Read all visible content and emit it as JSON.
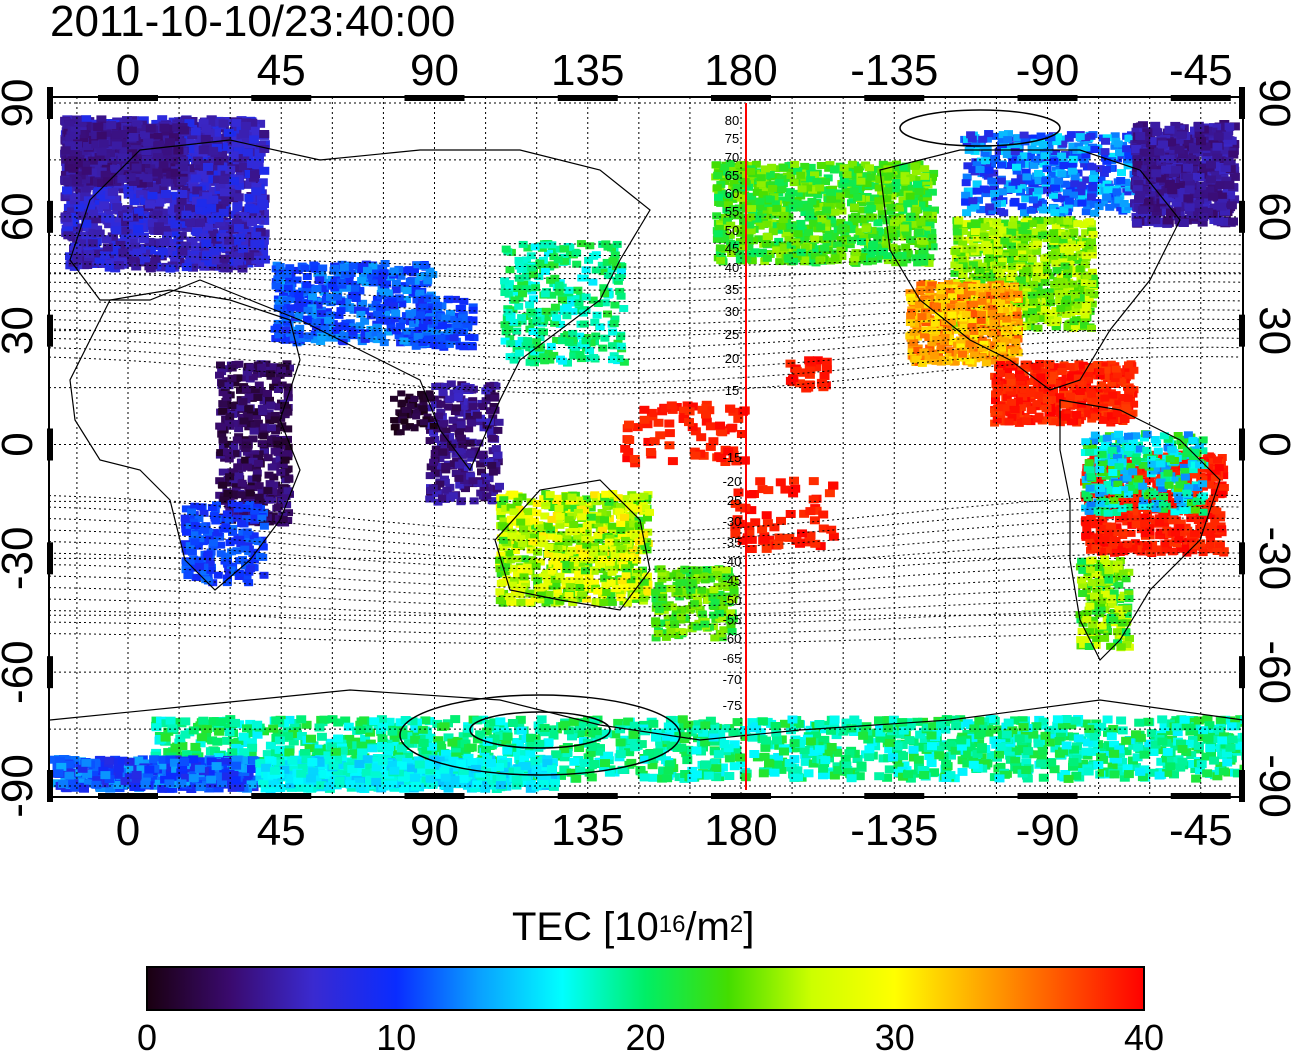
{
  "title": "2011-10-10/23:40:00",
  "map": {
    "lon_ticks": [
      "0",
      "45",
      "90",
      "135",
      "180",
      "-135",
      "-90",
      "-45"
    ],
    "lat_ticks": [
      "90",
      "60",
      "30",
      "0",
      "-30",
      "-60",
      "-90"
    ],
    "dip_contour_labels": [
      "80",
      "75",
      "70",
      "65",
      "60",
      "55",
      "50",
      "45",
      "40",
      "35",
      "30",
      "25",
      "20",
      "15",
      "-15",
      "-20",
      "-25",
      "-30",
      "-35",
      "-40",
      "-45",
      "-50",
      "-55",
      "-60",
      "-65",
      "-70",
      "-75"
    ],
    "marker_line_color": "#ff0000"
  },
  "colorbar": {
    "title_prefix": "TEC  [10",
    "title_exp1": "16",
    "title_mid": "/m",
    "title_exp2": "2",
    "title_suffix": "]",
    "tick_labels": [
      "0",
      "10",
      "20",
      "30",
      "40"
    ],
    "colors": [
      "#1a0010",
      "#3a0a6e",
      "#3a2ad0",
      "#0a2cff",
      "#0aa0ff",
      "#00ffff",
      "#00ee66",
      "#44dd00",
      "#ccff00",
      "#ffff00",
      "#ffaa00",
      "#ff5500",
      "#ff0000"
    ]
  }
}
